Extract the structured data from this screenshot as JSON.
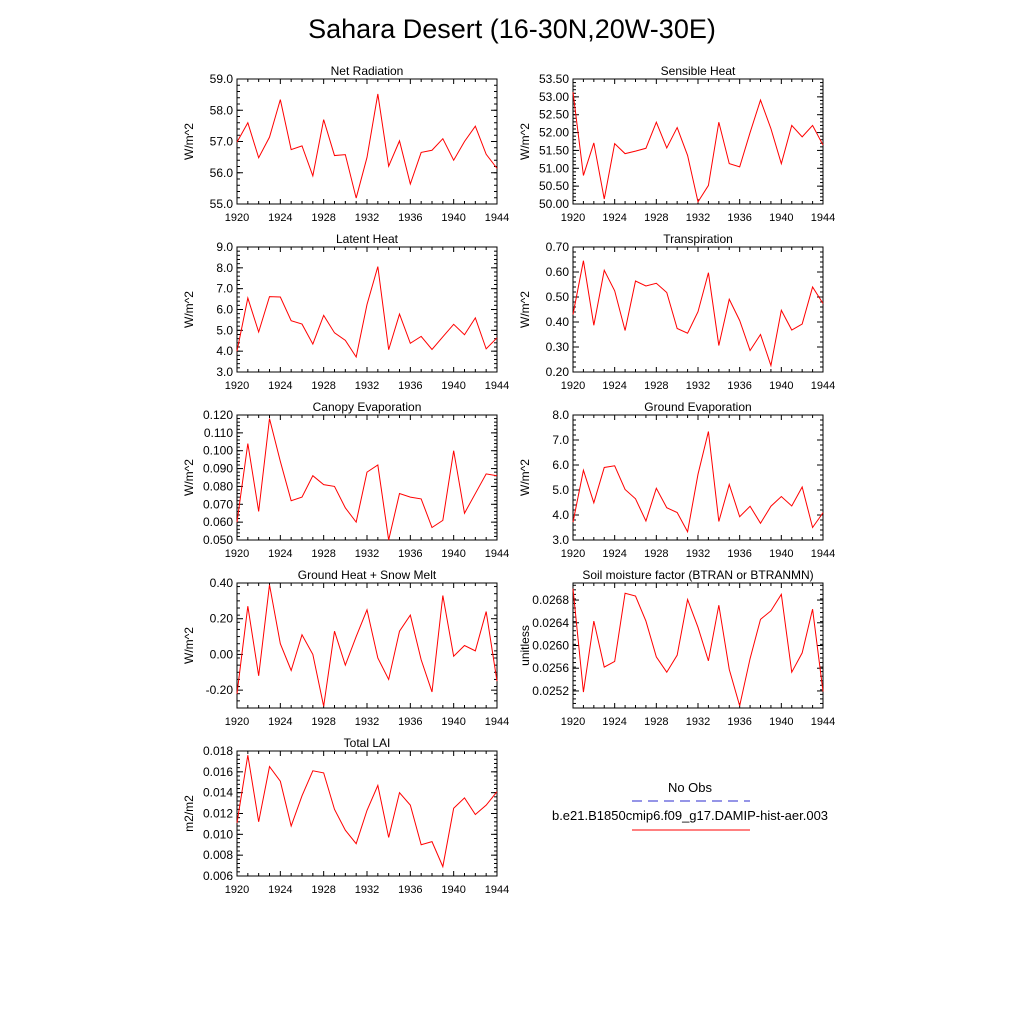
{
  "page_title": "Sahara Desert (16-30N,20W-30E)",
  "colors": {
    "model_line": "#ff0000",
    "obs_line": "#2b2bcf",
    "axis": "#000000"
  },
  "legend": {
    "obs_label": "No Obs",
    "model_label": "b.e21.B1850cmip6.f09_g17.DAMIP-hist-aer.003"
  },
  "chart_data": [
    {
      "type": "line",
      "title": "Net Radiation",
      "ylabel": "W/m^2",
      "xlim": [
        1920,
        1944
      ],
      "ylim": [
        55.0,
        59.0
      ],
      "xticks": [
        1920,
        1924,
        1928,
        1932,
        1936,
        1940,
        1944
      ],
      "yticks": [
        55.0,
        56.0,
        57.0,
        58.0,
        59.0
      ],
      "ytick_labels": [
        "55.0",
        "56.0",
        "57.0",
        "58.0",
        "59.0"
      ],
      "series": [
        {
          "x": [
            1920,
            1921,
            1922,
            1923,
            1924,
            1925,
            1926,
            1927,
            1928,
            1929,
            1930,
            1931,
            1932,
            1933,
            1934,
            1935,
            1936,
            1937,
            1938,
            1939,
            1940,
            1941,
            1942,
            1943,
            1944
          ],
          "values": [
            56.98,
            57.6,
            56.48,
            57.14,
            58.34,
            56.74,
            56.86,
            55.9,
            57.7,
            56.55,
            56.58,
            55.19,
            56.49,
            58.52,
            56.21,
            57.02,
            55.64,
            56.65,
            56.72,
            57.09,
            56.4,
            57.0,
            57.49,
            56.59,
            56.14
          ]
        }
      ]
    },
    {
      "type": "line",
      "title": "Sensible Heat",
      "ylabel": "W/m^2",
      "xlim": [
        1920,
        1944
      ],
      "ylim": [
        50.0,
        53.5
      ],
      "xticks": [
        1920,
        1924,
        1928,
        1932,
        1936,
        1940,
        1944
      ],
      "yticks": [
        50.0,
        50.5,
        51.0,
        51.5,
        52.0,
        52.5,
        53.0,
        53.5
      ],
      "ytick_labels": [
        "50.00",
        "50.50",
        "51.00",
        "51.50",
        "52.00",
        "52.50",
        "53.00",
        "53.50"
      ],
      "series": [
        {
          "x": [
            1920,
            1921,
            1922,
            1923,
            1924,
            1925,
            1926,
            1927,
            1928,
            1929,
            1930,
            1931,
            1932,
            1933,
            1934,
            1935,
            1936,
            1937,
            1938,
            1939,
            1940,
            1941,
            1942,
            1943,
            1944
          ],
          "values": [
            53.13,
            50.8,
            51.71,
            50.14,
            51.69,
            51.41,
            51.48,
            51.56,
            52.29,
            51.57,
            52.14,
            51.36,
            50.06,
            50.52,
            52.29,
            51.13,
            51.04,
            52.0,
            52.91,
            52.11,
            51.13,
            52.2,
            51.88,
            52.2,
            51.65
          ]
        }
      ]
    },
    {
      "type": "line",
      "title": "Latent Heat",
      "ylabel": "W/m^2",
      "xlim": [
        1920,
        1944
      ],
      "ylim": [
        3.0,
        9.0
      ],
      "xticks": [
        1920,
        1924,
        1928,
        1932,
        1936,
        1940,
        1944
      ],
      "yticks": [
        3.0,
        4.0,
        5.0,
        6.0,
        7.0,
        8.0,
        9.0
      ],
      "ytick_labels": [
        "3.0",
        "4.0",
        "5.0",
        "6.0",
        "7.0",
        "8.0",
        "9.0"
      ],
      "series": [
        {
          "x": [
            1920,
            1921,
            1922,
            1923,
            1924,
            1925,
            1926,
            1927,
            1928,
            1929,
            1930,
            1931,
            1932,
            1933,
            1934,
            1935,
            1936,
            1937,
            1938,
            1939,
            1940,
            1941,
            1942,
            1943,
            1944
          ],
          "values": [
            4.0,
            6.55,
            4.92,
            6.62,
            6.6,
            5.46,
            5.3,
            4.34,
            5.72,
            4.88,
            4.52,
            3.72,
            6.24,
            8.06,
            4.07,
            5.78,
            4.38,
            4.71,
            4.08,
            4.69,
            5.29,
            4.79,
            5.6,
            4.11,
            4.64
          ]
        }
      ]
    },
    {
      "type": "line",
      "title": "Transpiration",
      "ylabel": "W/m^2",
      "xlim": [
        1920,
        1944
      ],
      "ylim": [
        0.2,
        0.7
      ],
      "xticks": [
        1920,
        1924,
        1928,
        1932,
        1936,
        1940,
        1944
      ],
      "yticks": [
        0.2,
        0.3,
        0.4,
        0.5,
        0.6,
        0.7
      ],
      "ytick_labels": [
        "0.20",
        "0.30",
        "0.40",
        "0.50",
        "0.60",
        "0.70"
      ],
      "series": [
        {
          "x": [
            1920,
            1921,
            1922,
            1923,
            1924,
            1925,
            1926,
            1927,
            1928,
            1929,
            1930,
            1931,
            1932,
            1933,
            1934,
            1935,
            1936,
            1937,
            1938,
            1939,
            1940,
            1941,
            1942,
            1943,
            1944
          ],
          "values": [
            0.43,
            0.645,
            0.387,
            0.607,
            0.525,
            0.366,
            0.564,
            0.544,
            0.555,
            0.518,
            0.374,
            0.355,
            0.441,
            0.597,
            0.306,
            0.491,
            0.406,
            0.286,
            0.35,
            0.226,
            0.447,
            0.368,
            0.392,
            0.54,
            0.474
          ]
        }
      ]
    },
    {
      "type": "line",
      "title": "Canopy Evaporation",
      "ylabel": "W/m^2",
      "xlim": [
        1920,
        1944
      ],
      "ylim": [
        0.05,
        0.12
      ],
      "xticks": [
        1920,
        1924,
        1928,
        1932,
        1936,
        1940,
        1944
      ],
      "yticks": [
        0.05,
        0.06,
        0.07,
        0.08,
        0.09,
        0.1,
        0.11,
        0.12
      ],
      "ytick_labels": [
        "0.050",
        "0.060",
        "0.070",
        "0.080",
        "0.090",
        "0.100",
        "0.110",
        "0.120"
      ],
      "series": [
        {
          "x": [
            1920,
            1921,
            1922,
            1923,
            1924,
            1925,
            1926,
            1927,
            1928,
            1929,
            1930,
            1931,
            1932,
            1933,
            1934,
            1935,
            1936,
            1937,
            1938,
            1939,
            1940,
            1941,
            1942,
            1943,
            1944
          ],
          "values": [
            0.06,
            0.104,
            0.066,
            0.118,
            0.094,
            0.072,
            0.074,
            0.086,
            0.081,
            0.08,
            0.068,
            0.06,
            0.088,
            0.092,
            0.05,
            0.076,
            0.074,
            0.073,
            0.057,
            0.061,
            0.1,
            0.065,
            0.076,
            0.087,
            0.086
          ]
        }
      ]
    },
    {
      "type": "line",
      "title": "Ground Evaporation",
      "ylabel": "W/m^2",
      "xlim": [
        1920,
        1944
      ],
      "ylim": [
        3.0,
        8.0
      ],
      "xticks": [
        1920,
        1924,
        1928,
        1932,
        1936,
        1940,
        1944
      ],
      "yticks": [
        3.0,
        4.0,
        5.0,
        6.0,
        7.0,
        8.0
      ],
      "ytick_labels": [
        "3.0",
        "4.0",
        "5.0",
        "6.0",
        "7.0",
        "8.0"
      ],
      "series": [
        {
          "x": [
            1920,
            1921,
            1922,
            1923,
            1924,
            1925,
            1926,
            1927,
            1928,
            1929,
            1930,
            1931,
            1932,
            1933,
            1934,
            1935,
            1936,
            1937,
            1938,
            1939,
            1940,
            1941,
            1942,
            1943,
            1944
          ],
          "values": [
            3.71,
            5.79,
            4.49,
            5.9,
            5.97,
            5.02,
            4.65,
            3.76,
            5.07,
            4.29,
            4.1,
            3.33,
            5.63,
            7.34,
            3.74,
            5.22,
            3.93,
            4.35,
            3.67,
            4.35,
            4.74,
            4.36,
            5.12,
            3.5,
            4.09
          ]
        }
      ]
    },
    {
      "type": "line",
      "title": "Ground Heat + Snow Melt",
      "ylabel": "W/m^2",
      "xlim": [
        1920,
        1944
      ],
      "ylim": [
        -0.3,
        0.4
      ],
      "xticks": [
        1920,
        1924,
        1928,
        1932,
        1936,
        1940,
        1944
      ],
      "yticks": [
        -0.2,
        0.0,
        0.2,
        0.4
      ],
      "ytick_labels": [
        "-0.20",
        "0.00",
        "0.20",
        "0.40"
      ],
      "series": [
        {
          "x": [
            1920,
            1921,
            1922,
            1923,
            1924,
            1925,
            1926,
            1927,
            1928,
            1929,
            1930,
            1931,
            1932,
            1933,
            1934,
            1935,
            1936,
            1937,
            1938,
            1939,
            1940,
            1941,
            1942,
            1943,
            1944
          ],
          "values": [
            -0.22,
            0.27,
            -0.12,
            0.39,
            0.06,
            -0.09,
            0.11,
            0.0,
            -0.29,
            0.13,
            -0.06,
            0.1,
            0.25,
            -0.02,
            -0.14,
            0.13,
            0.22,
            -0.03,
            -0.21,
            0.33,
            -0.01,
            0.05,
            0.02,
            0.24,
            -0.15
          ]
        }
      ]
    },
    {
      "type": "line",
      "title": "Soil moisture factor (BTRAN or BTRANMN)",
      "ylabel": "unitless",
      "xlim": [
        1920,
        1944
      ],
      "ylim": [
        0.0249,
        0.0271
      ],
      "xticks": [
        1920,
        1924,
        1928,
        1932,
        1936,
        1940,
        1944
      ],
      "yticks": [
        0.0252,
        0.0256,
        0.026,
        0.0264,
        0.0268
      ],
      "ytick_labels": [
        "0.0252",
        "0.0256",
        "0.0260",
        "0.0264",
        "0.0268"
      ],
      "series": [
        {
          "x": [
            1920,
            1921,
            1922,
            1923,
            1924,
            1925,
            1926,
            1927,
            1928,
            1929,
            1930,
            1931,
            1932,
            1933,
            1934,
            1935,
            1936,
            1937,
            1938,
            1939,
            1940,
            1941,
            1942,
            1943,
            1944
          ],
          "values": [
            0.027,
            0.02518,
            0.02643,
            0.02562,
            0.02572,
            0.02692,
            0.02687,
            0.02643,
            0.0258,
            0.02553,
            0.02583,
            0.02681,
            0.02632,
            0.02573,
            0.02671,
            0.02558,
            0.02494,
            0.02577,
            0.02646,
            0.02661,
            0.0269,
            0.02553,
            0.02587,
            0.02664,
            0.02519
          ]
        }
      ]
    },
    {
      "type": "line",
      "title": "Total LAI",
      "ylabel": "m2/m2",
      "xlim": [
        1920,
        1944
      ],
      "ylim": [
        0.006,
        0.018
      ],
      "xticks": [
        1920,
        1924,
        1928,
        1932,
        1936,
        1940,
        1944
      ],
      "yticks": [
        0.006,
        0.008,
        0.01,
        0.012,
        0.014,
        0.016,
        0.018
      ],
      "ytick_labels": [
        "0.006",
        "0.008",
        "0.010",
        "0.012",
        "0.014",
        "0.016",
        "0.018"
      ],
      "series": [
        {
          "x": [
            1920,
            1921,
            1922,
            1923,
            1924,
            1925,
            1926,
            1927,
            1928,
            1929,
            1930,
            1931,
            1932,
            1933,
            1934,
            1935,
            1936,
            1937,
            1938,
            1939,
            1940,
            1941,
            1942,
            1943,
            1944
          ],
          "values": [
            0.0111,
            0.0176,
            0.0112,
            0.0165,
            0.0151,
            0.0108,
            0.0137,
            0.0161,
            0.0159,
            0.0124,
            0.0104,
            0.0091,
            0.0123,
            0.0147,
            0.0097,
            0.014,
            0.0128,
            0.009,
            0.0093,
            0.0069,
            0.0125,
            0.0135,
            0.0119,
            0.0128,
            0.0141
          ]
        }
      ]
    }
  ]
}
